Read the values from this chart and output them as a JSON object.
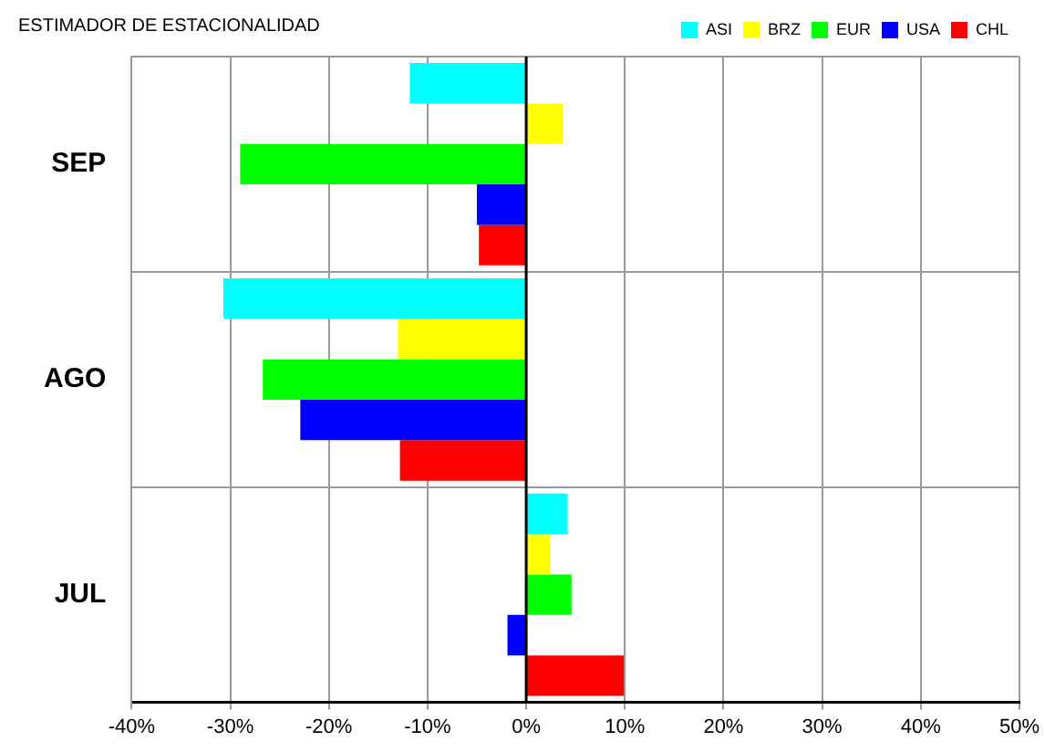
{
  "chart_data": {
    "type": "bar",
    "orientation": "horizontal",
    "title": "ESTIMADOR DE ESTACIONALIDAD",
    "categories": [
      "SEP",
      "AGO",
      "JUL"
    ],
    "series": [
      {
        "name": "ASI",
        "color": "#00ffff",
        "values": [
          -11.8,
          -30.7,
          4.2
        ]
      },
      {
        "name": "BRZ",
        "color": "#ffff00",
        "values": [
          3.7,
          -13,
          2.4
        ]
      },
      {
        "name": "EUR",
        "color": "#00ff00",
        "values": [
          -29,
          -26.7,
          4.6
        ]
      },
      {
        "name": "USA",
        "color": "#0000ff",
        "values": [
          -5,
          -22.9,
          -1.9
        ]
      },
      {
        "name": "CHL",
        "color": "#ff0000",
        "values": [
          -4.8,
          -12.8,
          9.9
        ]
      }
    ],
    "xlim": [
      -40,
      50
    ],
    "xticks": [
      {
        "value": -40,
        "label": "-40%"
      },
      {
        "value": -30,
        "label": "-30%"
      },
      {
        "value": -20,
        "label": "-20%"
      },
      {
        "value": -10,
        "label": "-10%"
      },
      {
        "value": 0,
        "label": "0%"
      },
      {
        "value": 10,
        "label": "10%"
      },
      {
        "value": 20,
        "label": "20%"
      },
      {
        "value": 30,
        "label": "30%"
      },
      {
        "value": 40,
        "label": "40%"
      },
      {
        "value": 50,
        "label": "50%"
      }
    ],
    "grid": true,
    "legend": "top right"
  }
}
